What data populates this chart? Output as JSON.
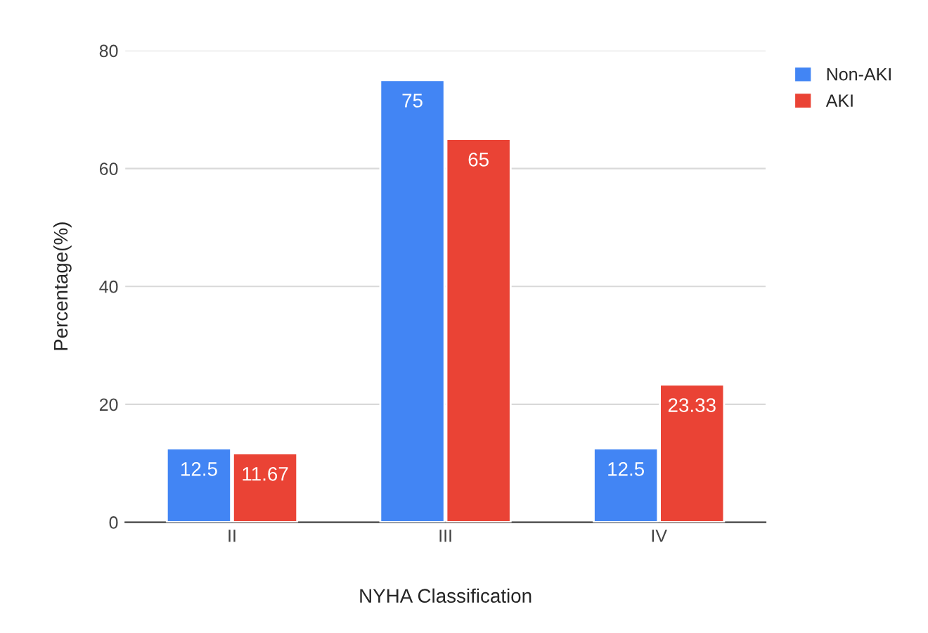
{
  "chart_data": {
    "type": "bar",
    "xlabel": "NYHA Classification",
    "ylabel": "Percentage(%)",
    "categories": [
      "II",
      "III",
      "IV"
    ],
    "series": [
      {
        "name": "Non-AKI",
        "color": "#4285f4",
        "values": [
          12.5,
          75,
          12.5
        ]
      },
      {
        "name": "AKI",
        "color": "#ea4335",
        "values": [
          11.67,
          65,
          23.33
        ]
      }
    ],
    "ylim": [
      0,
      80
    ],
    "yticks": [
      0,
      20,
      40,
      60,
      80
    ],
    "grid": "y",
    "legend": "top right",
    "data_labels": true
  }
}
